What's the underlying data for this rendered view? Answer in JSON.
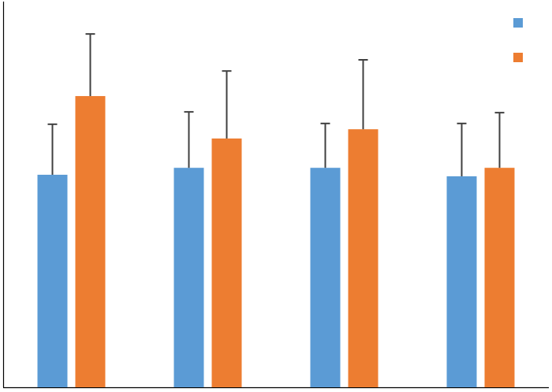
{
  "chart_data": {
    "type": "bar",
    "categories": [
      null,
      null,
      null,
      null
    ],
    "series": [
      {
        "color": "#5b9bd5",
        "values": [
          55.1,
          56.9,
          56.9,
          54.7
        ],
        "errors": [
          13.1,
          14.5,
          11.5,
          13.7
        ]
      },
      {
        "color": "#ed7d31",
        "values": [
          75.5,
          64.5,
          66.9,
          56.9
        ],
        "errors": [
          16.1,
          17.5,
          18.0,
          14.3
        ]
      }
    ],
    "ylim": [
      0,
      100
    ],
    "legend": "top-right",
    "grid": false
  }
}
